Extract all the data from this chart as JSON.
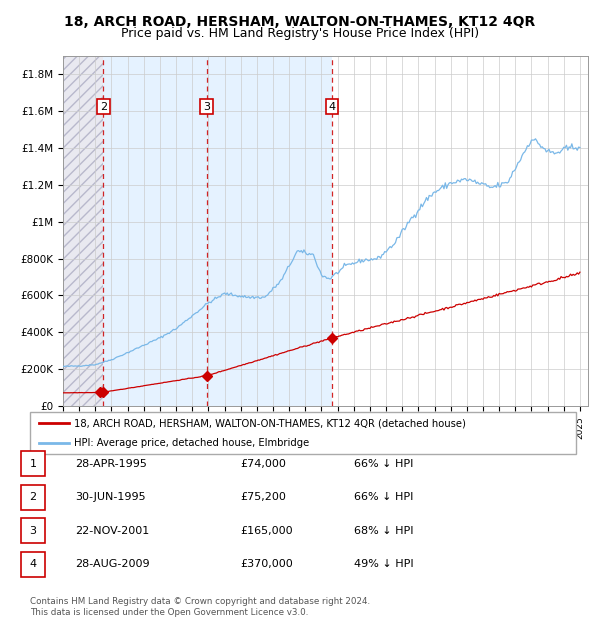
{
  "title": "18, ARCH ROAD, HERSHAM, WALTON-ON-THAMES, KT12 4QR",
  "subtitle": "Price paid vs. HM Land Registry's House Price Index (HPI)",
  "xlim_start": 1993.0,
  "xlim_end": 2025.5,
  "ylim_min": 0,
  "ylim_max": 1900000,
  "yticks": [
    0,
    200000,
    400000,
    600000,
    800000,
    1000000,
    1200000,
    1400000,
    1600000,
    1800000
  ],
  "ytick_labels": [
    "£0",
    "£200K",
    "£400K",
    "£600K",
    "£800K",
    "£1M",
    "£1.2M",
    "£1.4M",
    "£1.6M",
    "£1.8M"
  ],
  "xticks": [
    1993,
    1994,
    1995,
    1996,
    1997,
    1998,
    1999,
    2000,
    2001,
    2002,
    2003,
    2004,
    2005,
    2006,
    2007,
    2008,
    2009,
    2010,
    2011,
    2012,
    2013,
    2014,
    2015,
    2016,
    2017,
    2018,
    2019,
    2020,
    2021,
    2022,
    2023,
    2024,
    2025
  ],
  "transactions": [
    {
      "num": 1,
      "date": "28-APR-1995",
      "year": 1995.32,
      "price": 74000,
      "pct": "66% ↓ HPI"
    },
    {
      "num": 2,
      "date": "30-JUN-1995",
      "year": 1995.5,
      "price": 75200,
      "pct": "66% ↓ HPI"
    },
    {
      "num": 3,
      "date": "22-NOV-2001",
      "year": 2001.9,
      "price": 165000,
      "pct": "68% ↓ HPI"
    },
    {
      "num": 4,
      "date": "28-AUG-2009",
      "year": 2009.66,
      "price": 370000,
      "pct": "49% ↓ HPI"
    }
  ],
  "hpi_color": "#7ab8e8",
  "price_color": "#cc0000",
  "hatch_color": "#d0d0d8",
  "shade_color": "#ddeeff",
  "legend_label_price": "18, ARCH ROAD, HERSHAM, WALTON-ON-THAMES, KT12 4QR (detached house)",
  "legend_label_hpi": "HPI: Average price, detached house, Elmbridge",
  "footer": "Contains HM Land Registry data © Crown copyright and database right 2024.\nThis data is licensed under the Open Government Licence v3.0.",
  "title_fontsize": 10,
  "subtitle_fontsize": 9,
  "hpi_anchors_t": [
    1993.0,
    1994.0,
    1995.0,
    1996.0,
    1997.0,
    1998.0,
    1999.0,
    2000.0,
    2001.0,
    2002.0,
    2003.0,
    2004.5,
    2005.5,
    2006.5,
    2007.5,
    2008.5,
    2009.0,
    2009.5,
    2010.5,
    2011.5,
    2012.5,
    2013.5,
    2014.5,
    2015.5,
    2016.0,
    2017.0,
    2018.0,
    2018.5,
    2019.5,
    2020.5,
    2021.5,
    2022.0,
    2022.5,
    2023.0,
    2023.5,
    2024.0,
    2024.9
  ],
  "hpi_anchors_p": [
    215000,
    218000,
    225000,
    252000,
    290000,
    330000,
    370000,
    420000,
    490000,
    560000,
    610000,
    590000,
    590000,
    680000,
    840000,
    820000,
    710000,
    690000,
    760000,
    790000,
    800000,
    880000,
    1010000,
    1120000,
    1160000,
    1210000,
    1230000,
    1215000,
    1185000,
    1210000,
    1370000,
    1450000,
    1420000,
    1380000,
    1370000,
    1390000,
    1410000
  ],
  "price_ratio": 0.335,
  "price_anchors_t": [
    1993.0,
    1995.32,
    1995.5,
    2001.9,
    2009.66,
    2025.0
  ],
  "price_anchors_p": [
    72000,
    74000,
    75200,
    165000,
    370000,
    720000
  ]
}
